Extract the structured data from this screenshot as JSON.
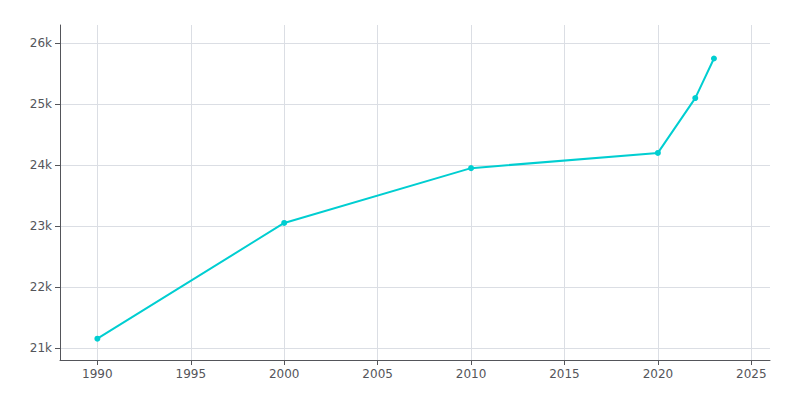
{
  "chart_data": {
    "type": "line",
    "x": [
      1990,
      2000,
      2010,
      2020,
      2022,
      2023
    ],
    "values": [
      21150,
      23050,
      23950,
      24200,
      25100,
      25750
    ],
    "color": "#00CED1",
    "marker": "circle",
    "xlim": [
      1988,
      2026
    ],
    "ylim": [
      20800,
      26300
    ],
    "xticks": [
      1990,
      1995,
      2000,
      2005,
      2010,
      2015,
      2020,
      2025
    ],
    "yticks": [
      {
        "value": 21000,
        "label": "21k"
      },
      {
        "value": 22000,
        "label": "22k"
      },
      {
        "value": 23000,
        "label": "23k"
      },
      {
        "value": 24000,
        "label": "24k"
      },
      {
        "value": 25000,
        "label": "25k"
      },
      {
        "value": 26000,
        "label": "26k"
      }
    ],
    "grid": true
  }
}
